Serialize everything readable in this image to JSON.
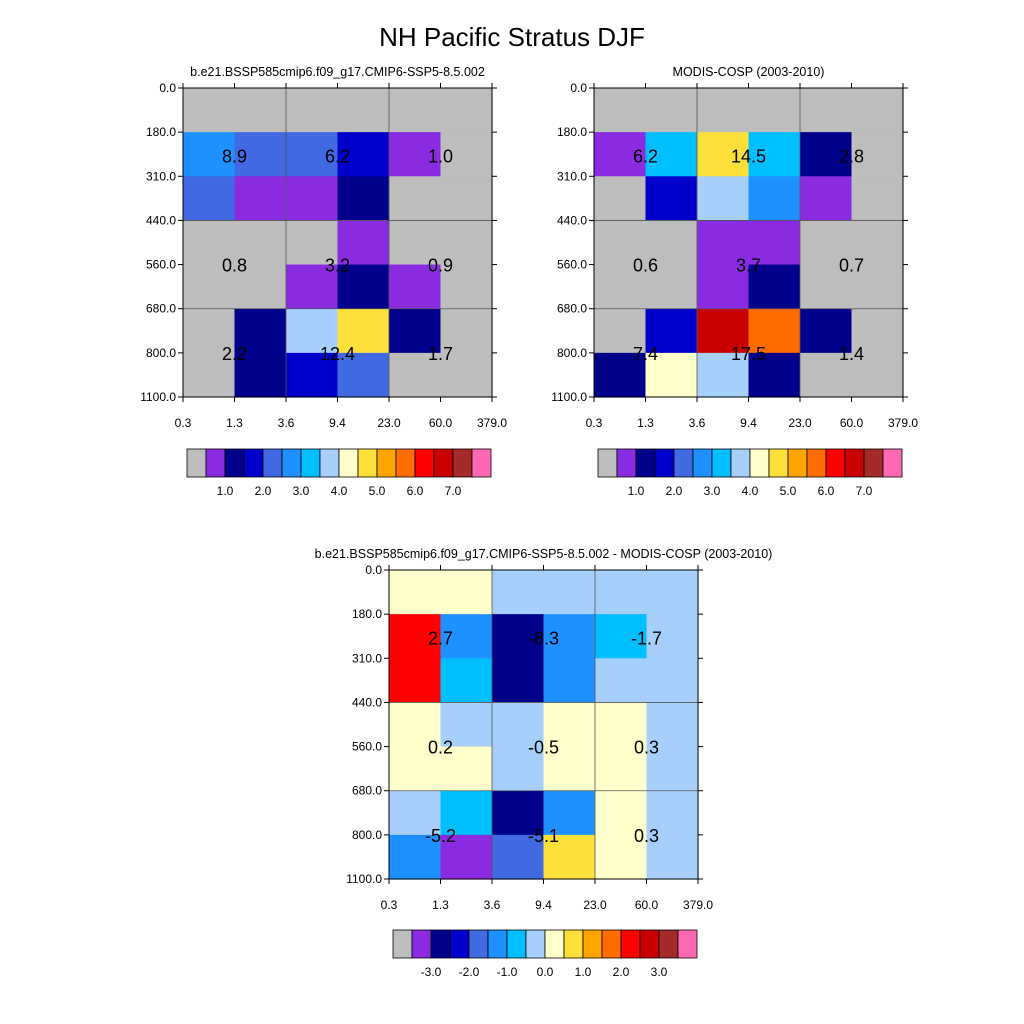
{
  "page_title": "NH Pacific Stratus DJF",
  "palette": {
    "grey": "#bdbdbd",
    "purple": "#8a2be2",
    "navy": "#00008b",
    "medblue": "#0000cd",
    "royal": "#4169e1",
    "dodger": "#1e90ff",
    "sky": "#00bfff",
    "light": "#a6d0fb",
    "cream": "#ffffcc",
    "gold": "#fde13a",
    "orange1": "#ffa500",
    "orange2": "#ff6d00",
    "red": "#ff0000",
    "crimson": "#c80000",
    "brown": "#a52a2a",
    "pink": "#ff69b4"
  },
  "chart_data": [
    {
      "type": "heatmap",
      "title": "b.e21.BSSP585cmip6.f09_g17.CMIP6-SSP5-8.5.002",
      "y_tick_labels": [
        "0.0",
        "180.0",
        "310.0",
        "440.0",
        "560.0",
        "680.0",
        "800.0",
        "1100.0"
      ],
      "x_tick_labels": [
        "0.3",
        "1.3",
        "3.6",
        "9.4",
        "23.0",
        "60.0",
        "379.0"
      ],
      "cells": [
        [
          "grey",
          "grey",
          "grey",
          "grey",
          "grey",
          "grey"
        ],
        [
          "dodger",
          "royal",
          "royal",
          "medblue",
          "purple",
          "grey"
        ],
        [
          "royal",
          "purple",
          "purple",
          "navy",
          "grey",
          "grey"
        ],
        [
          "grey",
          "grey",
          "grey",
          "purple",
          "grey",
          "grey"
        ],
        [
          "grey",
          "grey",
          "purple",
          "navy",
          "purple",
          "grey"
        ],
        [
          "grey",
          "navy",
          "light",
          "gold",
          "navy",
          "grey"
        ],
        [
          "grey",
          "navy",
          "medblue",
          "royal",
          "grey",
          "grey"
        ]
      ],
      "values": [
        [
          8.9,
          6.2,
          1.0
        ],
        [
          0.8,
          3.2,
          0.9
        ],
        [
          2.2,
          12.4,
          1.7
        ]
      ],
      "value_labels": [
        [
          "8.9",
          "6.2",
          "1.0"
        ],
        [
          "0.8",
          "3.2",
          "0.9"
        ],
        [
          "2.2",
          "12.4",
          "1.7"
        ]
      ],
      "colorbar": {
        "colors": [
          "grey",
          "purple",
          "navy",
          "medblue",
          "royal",
          "dodger",
          "sky",
          "light",
          "cream",
          "gold",
          "orange1",
          "orange2",
          "red",
          "crimson",
          "brown",
          "pink"
        ],
        "tick_labels": [
          "1.0",
          "2.0",
          "3.0",
          "4.0",
          "5.0",
          "6.0",
          "7.0"
        ],
        "tick_boxes": [
          2,
          4,
          6,
          8,
          10,
          12,
          14
        ]
      }
    },
    {
      "type": "heatmap",
      "title": "MODIS-COSP (2003-2010)",
      "y_tick_labels": [
        "0.0",
        "180.0",
        "310.0",
        "440.0",
        "560.0",
        "680.0",
        "800.0",
        "1100.0"
      ],
      "x_tick_labels": [
        "0.3",
        "1.3",
        "3.6",
        "9.4",
        "23.0",
        "60.0",
        "379.0"
      ],
      "cells": [
        [
          "grey",
          "grey",
          "grey",
          "grey",
          "grey",
          "grey"
        ],
        [
          "purple",
          "sky",
          "gold",
          "sky",
          "navy",
          "grey"
        ],
        [
          "grey",
          "medblue",
          "light",
          "dodger",
          "purple",
          "grey"
        ],
        [
          "grey",
          "grey",
          "purple",
          "purple",
          "grey",
          "grey"
        ],
        [
          "grey",
          "grey",
          "purple",
          "navy",
          "grey",
          "grey"
        ],
        [
          "grey",
          "medblue",
          "crimson",
          "orange2",
          "navy",
          "grey"
        ],
        [
          "navy",
          "cream",
          "light",
          "navy",
          "grey",
          "grey"
        ]
      ],
      "values": [
        [
          6.2,
          14.5,
          2.8
        ],
        [
          0.6,
          3.7,
          0.7
        ],
        [
          7.4,
          17.5,
          1.4
        ]
      ],
      "value_labels": [
        [
          "6.2",
          "14.5",
          "2.8"
        ],
        [
          "0.6",
          "3.7",
          "0.7"
        ],
        [
          "7.4",
          "17.5",
          "1.4"
        ]
      ],
      "colorbar": {
        "colors": [
          "grey",
          "purple",
          "navy",
          "medblue",
          "royal",
          "dodger",
          "sky",
          "light",
          "cream",
          "gold",
          "orange1",
          "orange2",
          "red",
          "crimson",
          "brown",
          "pink"
        ],
        "tick_labels": [
          "1.0",
          "2.0",
          "3.0",
          "4.0",
          "5.0",
          "6.0",
          "7.0"
        ],
        "tick_boxes": [
          2,
          4,
          6,
          8,
          10,
          12,
          14
        ]
      }
    },
    {
      "type": "heatmap",
      "title": "b.e21.BSSP585cmip6.f09_g17.CMIP6-SSP5-8.5.002 - MODIS-COSP (2003-2010)",
      "y_tick_labels": [
        "0.0",
        "180.0",
        "310.0",
        "440.0",
        "560.0",
        "680.0",
        "800.0",
        "1100.0"
      ],
      "x_tick_labels": [
        "0.3",
        "1.3",
        "3.6",
        "9.4",
        "23.0",
        "60.0",
        "379.0"
      ],
      "cells": [
        [
          "cream",
          "cream",
          "light",
          "light",
          "light",
          "light"
        ],
        [
          "red",
          "dodger",
          "navy",
          "dodger",
          "sky",
          "light"
        ],
        [
          "red",
          "sky",
          "navy",
          "dodger",
          "light",
          "light"
        ],
        [
          "cream",
          "light",
          "light",
          "cream",
          "cream",
          "light"
        ],
        [
          "cream",
          "cream",
          "light",
          "cream",
          "cream",
          "light"
        ],
        [
          "light",
          "sky",
          "navy",
          "dodger",
          "cream",
          "light"
        ],
        [
          "dodger",
          "purple",
          "royal",
          "gold",
          "cream",
          "light"
        ]
      ],
      "values": [
        [
          2.7,
          -8.3,
          -1.7
        ],
        [
          0.2,
          -0.5,
          0.3
        ],
        [
          -5.2,
          -5.1,
          0.3
        ]
      ],
      "value_labels": [
        [
          "2.7",
          "-8.3",
          "-1.7"
        ],
        [
          "0.2",
          "-0.5",
          "0.3"
        ],
        [
          "-5.2",
          "-5.1",
          "0.3"
        ]
      ],
      "colorbar": {
        "colors": [
          "grey",
          "purple",
          "navy",
          "medblue",
          "royal",
          "dodger",
          "sky",
          "light",
          "cream",
          "gold",
          "orange1",
          "orange2",
          "red",
          "crimson",
          "brown",
          "pink"
        ],
        "tick_labels": [
          "-3.0",
          "-2.0",
          "-1.0",
          "0.0",
          "1.0",
          "2.0",
          "3.0"
        ],
        "tick_boxes": [
          2,
          4,
          6,
          8,
          10,
          12,
          14
        ]
      }
    }
  ]
}
